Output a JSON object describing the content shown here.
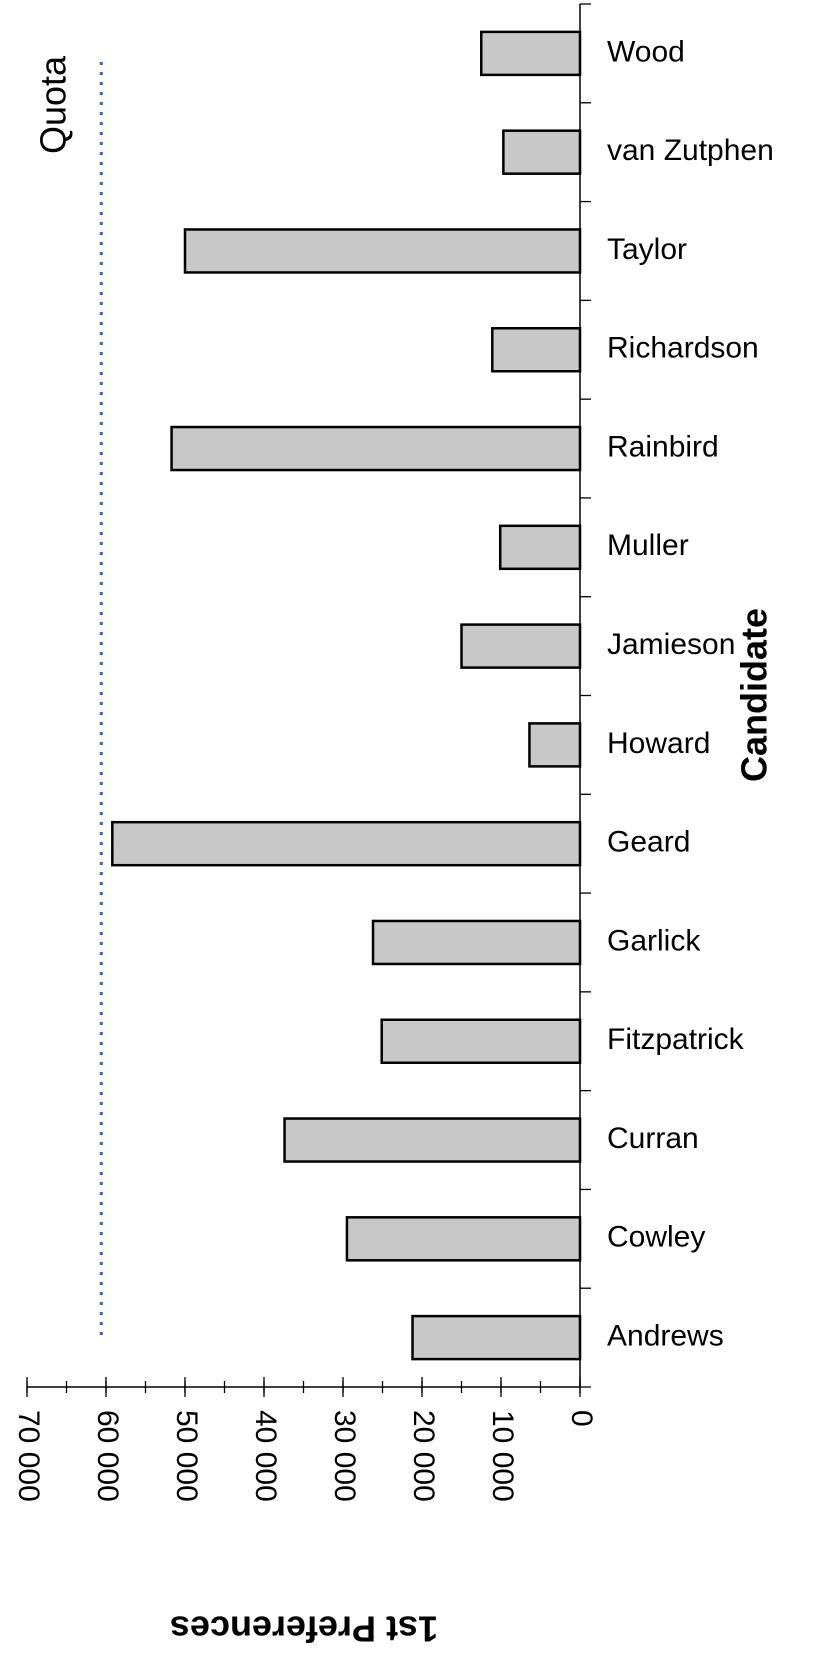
{
  "chart_data": {
    "type": "bar",
    "orientation": "horizontal",
    "rotated_90": true,
    "categories": [
      "Andrews",
      "Cowley",
      "Curran",
      "Fitzpatrick",
      "Garlick",
      "Geard",
      "Howard",
      "Jamieson",
      "Muller",
      "Rainbird",
      "Richardson",
      "Taylor",
      "van Zutphen",
      "Wood"
    ],
    "values": [
      21200,
      29500,
      37400,
      25100,
      26200,
      59200,
      6400,
      15000,
      10100,
      51700,
      11100,
      50000,
      9700,
      12500
    ],
    "xlabel": "Candidate",
    "ylabel": "1st Preferences",
    "ylim": [
      0,
      70000
    ],
    "major_ticks": [
      0,
      10000,
      20000,
      30000,
      40000,
      50000,
      60000,
      70000
    ],
    "tick_labels": [
      "0",
      "10 000",
      "20 000",
      "30 000",
      "40 000",
      "50 000",
      "60 000",
      "70 000"
    ],
    "minor_tick_step": 5000,
    "grid": false,
    "quota": {
      "label": "Quota",
      "value": 60600
    },
    "colors": {
      "bar_fill": "#c8c8c8",
      "bar_stroke": "#000000",
      "quota_line": "#2f5fe8"
    }
  }
}
